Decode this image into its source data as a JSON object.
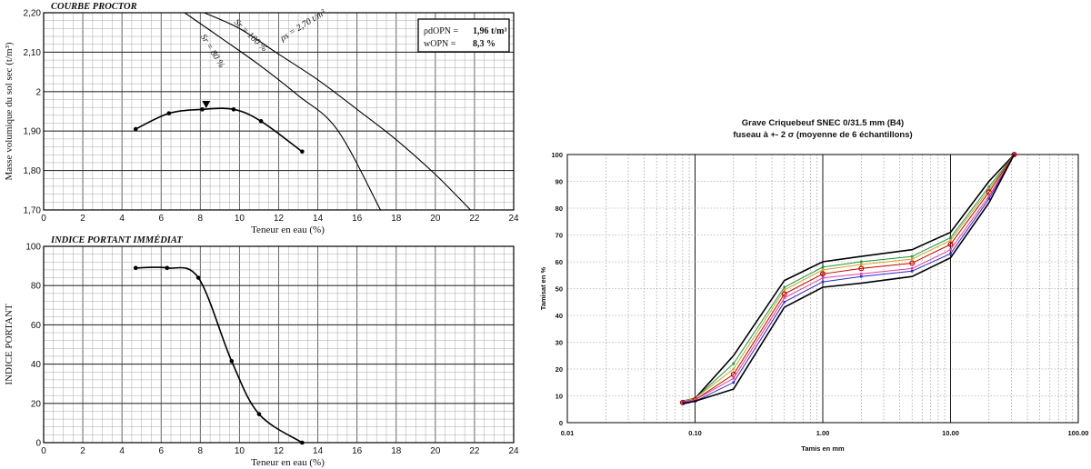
{
  "chart_data": [
    {
      "type": "line",
      "title": "COURBE PROCTOR",
      "xlabel": "Teneur en eau   (%)",
      "ylabel": "Masse volumique du sol sec   (t/m³)",
      "xlim": [
        0,
        24
      ],
      "ylim": [
        1.7,
        2.2
      ],
      "x_ticks": [
        "0",
        "2",
        "4",
        "6",
        "8",
        "10",
        "12",
        "14",
        "16",
        "18",
        "20",
        "22",
        "24"
      ],
      "y_ticks": [
        "1,70",
        "1,80",
        "1,90",
        "2",
        "2,10",
        "2,20"
      ],
      "grid": true,
      "series": [
        {
          "name": "",
          "x": [
            4.7,
            6.4,
            8.1,
            9.7,
            11.1,
            13.2
          ],
          "y": [
            1.905,
            1.945,
            1.955,
            1.955,
            1.925,
            1.848
          ]
        }
      ],
      "optimum": {
        "x": 8.3,
        "y": 1.965
      },
      "saturation_lines": [
        {
          "label": "Sr = 80 %",
          "x": [
            7.2,
            9,
            11,
            13,
            15,
            17.2
          ],
          "y": [
            2.2,
            2.138,
            2.068,
            1.99,
            1.903,
            1.7
          ]
        },
        {
          "label": "Sr = 100 %",
          "x": [
            8.2,
            10,
            12,
            14,
            16,
            18,
            20,
            21.8
          ],
          "y": [
            2.2,
            2.16,
            2.095,
            2.03,
            1.955,
            1.878,
            1.79,
            1.7
          ]
        }
      ],
      "annotations": [
        {
          "text": "ρs = 2,70 t/m³"
        }
      ],
      "legend_box": [
        {
          "label": "ρdOPN =",
          "value": "1,96 t/m³"
        },
        {
          "label": "wOPN =",
          "value": "8,3 %"
        }
      ]
    },
    {
      "type": "line",
      "title": "INDICE PORTANT IMMÉDIAT",
      "xlabel": "Teneur en eau   (%)",
      "ylabel": "INDICE PORTANT",
      "xlim": [
        0,
        24
      ],
      "ylim": [
        0,
        100
      ],
      "x_ticks": [
        "0",
        "2",
        "4",
        "6",
        "8",
        "10",
        "12",
        "14",
        "16",
        "18",
        "20",
        "22",
        "24"
      ],
      "y_ticks": [
        "0",
        "20",
        "40",
        "60",
        "80",
        "100"
      ],
      "grid": true,
      "series": [
        {
          "name": "",
          "x": [
            4.7,
            6.3,
            7.9,
            9.6,
            11.0,
            13.2
          ],
          "y": [
            89,
            89,
            84,
            41.5,
            14.5,
            0
          ]
        }
      ]
    },
    {
      "type": "line",
      "title": "Grave Criquebeuf  SNEC 0/31.5 mm (B4)",
      "subtitle": "fuseau à +- 2 σ (moyenne de 6 échantillons)",
      "xlabel": "Tamis en mm",
      "ylabel": "Tamisat en %",
      "x_scale": "log",
      "xlim": [
        0.01,
        100
      ],
      "ylim": [
        0,
        100
      ],
      "x_ticks": [
        "0.01",
        "0.10",
        "1.00",
        "10.00",
        "100.00"
      ],
      "y_ticks": [
        "0",
        "10",
        "20",
        "30",
        "40",
        "50",
        "60",
        "70",
        "80",
        "90",
        "100"
      ],
      "grid": true,
      "x": [
        0.08,
        0.1,
        0.2,
        0.5,
        1,
        2,
        5,
        10,
        20,
        31.5
      ],
      "series": [
        {
          "name": "",
          "color": "#000000",
          "values": [
            8,
            9,
            25,
            53,
            60,
            62,
            64.5,
            71,
            90,
            100
          ]
        },
        {
          "name": "",
          "color": "#1a9a3a",
          "values": [
            8,
            9,
            22,
            50.5,
            58,
            60,
            62,
            69,
            88,
            100
          ]
        },
        {
          "name": "",
          "color": "#d8a020",
          "values": [
            8,
            9,
            20,
            49.5,
            57,
            59,
            61,
            68,
            87,
            100
          ]
        },
        {
          "name": "",
          "color": "#cc0000",
          "values": [
            7.5,
            8.5,
            18,
            48,
            55.5,
            57.5,
            59.5,
            66.5,
            86,
            100
          ]
        },
        {
          "name": "",
          "color": "#e040a0",
          "values": [
            7.5,
            8.5,
            16.5,
            46.5,
            54,
            55.5,
            57.5,
            64.5,
            84.5,
            100
          ]
        },
        {
          "name": "",
          "color": "#2a2ad0",
          "values": [
            7.5,
            8,
            15,
            45,
            52.5,
            54.5,
            56.5,
            63,
            83.5,
            100
          ]
        },
        {
          "name": "",
          "color": "#000000",
          "values": [
            7,
            8,
            12.5,
            43,
            50.5,
            52,
            54.5,
            61.5,
            82,
            100
          ]
        }
      ]
    }
  ]
}
